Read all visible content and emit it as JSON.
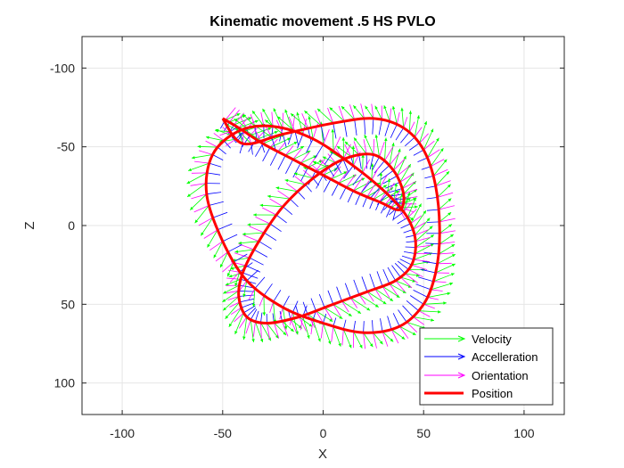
{
  "chart_data": {
    "type": "line",
    "title": "Kinematic movement .5 HS PVLO",
    "xlabel": "X",
    "ylabel": "Z",
    "xlim": [
      -120,
      120
    ],
    "ylim": [
      -120,
      120
    ],
    "y_reversed": true,
    "x_ticks": [
      "-100",
      "-50",
      "0",
      "50",
      "100"
    ],
    "y_ticks": [
      "-100",
      "-50",
      "0",
      "50",
      "100"
    ],
    "x_tick_values": [
      -100,
      -50,
      0,
      50,
      100
    ],
    "y_tick_values": [
      -100,
      -50,
      0,
      50,
      100
    ],
    "grid": true,
    "legend_position": "bottom-right",
    "series": [
      {
        "name": "Velocity",
        "kind": "quiver",
        "color": "#00ff00"
      },
      {
        "name": "Accelleration",
        "kind": "quiver",
        "color": "#0000ff"
      },
      {
        "name": "Orientation",
        "kind": "quiver",
        "color": "#ff00ff"
      },
      {
        "name": "Position",
        "kind": "line",
        "color": "#ff0000",
        "x": [
          -50,
          -42,
          -30,
          -15,
          0,
          15,
          28,
          38,
          40,
          35,
          25,
          10,
          -5,
          -20,
          -32,
          -40,
          -42,
          -38,
          -28,
          -12,
          5,
          22,
          36,
          44,
          46,
          42,
          32,
          15,
          -5,
          -25,
          -42,
          -55,
          -58,
          -50,
          -38,
          -20,
          0,
          20,
          38,
          50,
          56,
          58,
          56,
          50,
          40,
          25,
          5,
          -20,
          -40,
          -50
        ],
        "y": [
          -68,
          -62,
          -52,
          -42,
          -32,
          -22,
          -15,
          -10,
          -20,
          -35,
          -45,
          -42,
          -30,
          -12,
          10,
          30,
          45,
          58,
          62,
          58,
          50,
          42,
          35,
          25,
          10,
          -5,
          -20,
          -38,
          -55,
          -63,
          -60,
          -45,
          -20,
          10,
          35,
          52,
          62,
          68,
          64,
          50,
          30,
          5,
          -25,
          -48,
          -62,
          -68,
          -65,
          -58,
          -52,
          -68
        ]
      }
    ]
  }
}
